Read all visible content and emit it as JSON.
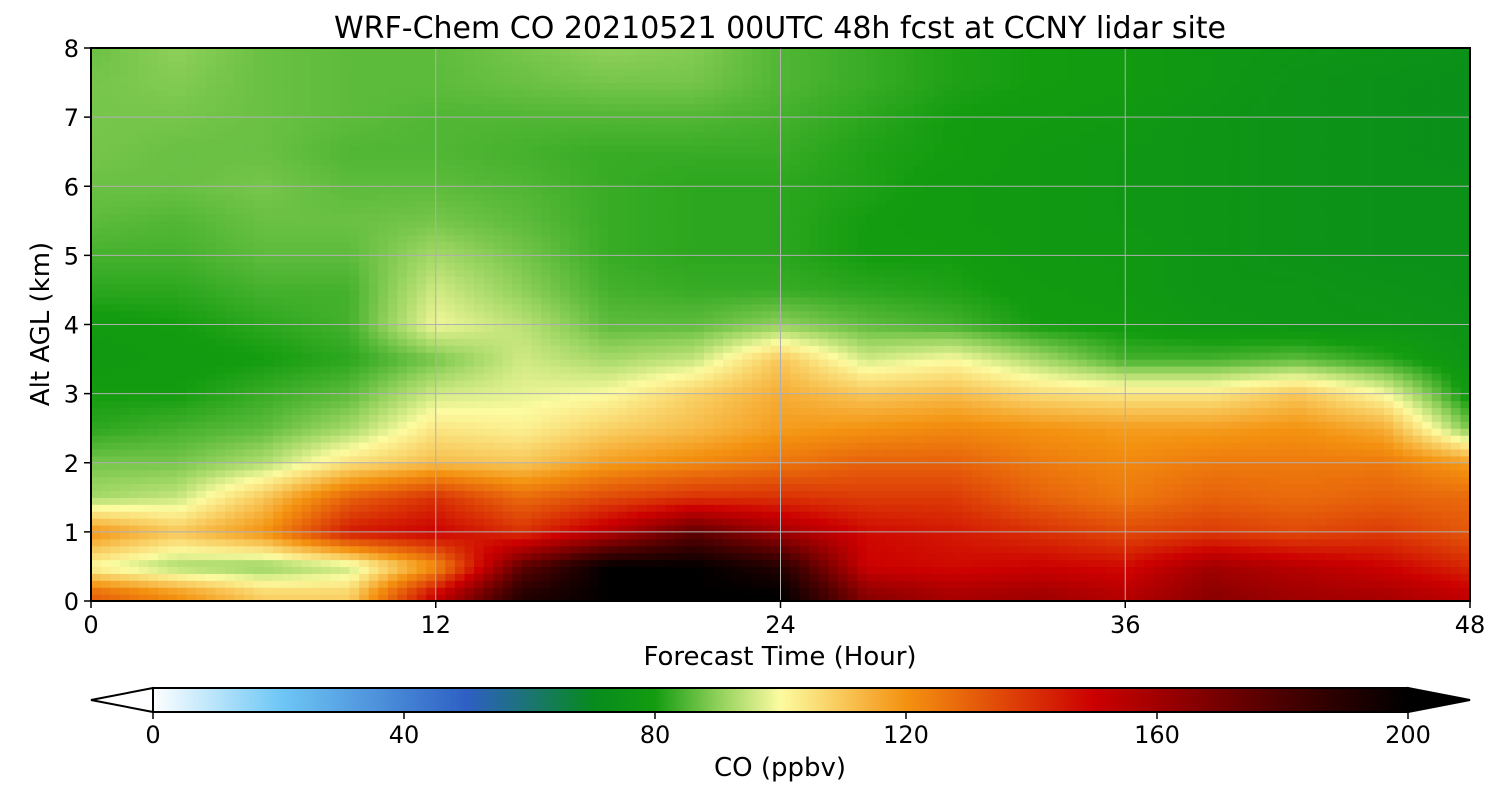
{
  "chart_data": {
    "type": "heatmap",
    "title": "WRF-Chem CO  20210521 00UTC 48h fcst at CCNY lidar site",
    "xlabel": "Forecast Time (Hour)",
    "ylabel": "Alt AGL (km)",
    "xlim": [
      0,
      48
    ],
    "ylim": [
      0,
      8
    ],
    "x_ticks": [
      "0",
      "12",
      "24",
      "36",
      "48"
    ],
    "y_ticks": [
      "0",
      "1",
      "2",
      "3",
      "4",
      "5",
      "6",
      "7",
      "8"
    ],
    "grid": true,
    "colorbar": {
      "label": "CO  (ppbv)",
      "range": [
        0,
        200
      ],
      "ticks": [
        "0",
        "40",
        "80",
        "120",
        "160",
        "200"
      ],
      "extend": "both",
      "palette": [
        {
          "value": 0,
          "color": "#ffffff"
        },
        {
          "value": 20,
          "color": "#6fc8f5"
        },
        {
          "value": 50,
          "color": "#2e5fc4"
        },
        {
          "value": 70,
          "color": "#078a1e"
        },
        {
          "value": 80,
          "color": "#139c0f"
        },
        {
          "value": 90,
          "color": "#8fd05a"
        },
        {
          "value": 100,
          "color": "#fcfba0"
        },
        {
          "value": 120,
          "color": "#f49210"
        },
        {
          "value": 150,
          "color": "#cc0000"
        },
        {
          "value": 180,
          "color": "#4a0000"
        },
        {
          "value": 200,
          "color": "#000000"
        }
      ]
    },
    "times": [
      0,
      3,
      6,
      9,
      12,
      15,
      18,
      21,
      24,
      27,
      30,
      33,
      36,
      39,
      42,
      45,
      48
    ],
    "altitudes": [
      0.1,
      0.5,
      1.0,
      1.5,
      2.0,
      2.5,
      3.0,
      3.5,
      4.0,
      4.5,
      5.0,
      5.5,
      6.0,
      6.5,
      7.0,
      7.5,
      8.0
    ],
    "values": [
      [
        130,
        120,
        108,
        108,
        150,
        190,
        200,
        200,
        200,
        165,
        158,
        160,
        155,
        165,
        160,
        158,
        152
      ],
      [
        100,
        92,
        90,
        95,
        120,
        175,
        200,
        200,
        190,
        150,
        148,
        150,
        148,
        160,
        155,
        150,
        142
      ],
      [
        120,
        110,
        120,
        145,
        150,
        140,
        155,
        175,
        160,
        148,
        145,
        140,
        135,
        138,
        135,
        138,
        132
      ],
      [
        92,
        95,
        110,
        130,
        140,
        128,
        135,
        140,
        140,
        138,
        138,
        130,
        125,
        130,
        128,
        130,
        128
      ],
      [
        88,
        88,
        93,
        105,
        112,
        110,
        118,
        122,
        126,
        130,
        130,
        125,
        122,
        125,
        125,
        125,
        118
      ],
      [
        82,
        84,
        86,
        92,
        104,
        102,
        108,
        112,
        118,
        120,
        122,
        120,
        118,
        118,
        120,
        115,
        88
      ],
      [
        80,
        80,
        83,
        86,
        96,
        98,
        100,
        108,
        115,
        110,
        112,
        106,
        104,
        104,
        110,
        100,
        78
      ],
      [
        78,
        79,
        80,
        82,
        88,
        96,
        92,
        95,
        110,
        96,
        100,
        92,
        84,
        84,
        86,
        82,
        76
      ],
      [
        79,
        80,
        82,
        84,
        99,
        94,
        86,
        86,
        90,
        86,
        84,
        80,
        79,
        77,
        76,
        76,
        75
      ],
      [
        82,
        82,
        84,
        84,
        96,
        90,
        84,
        83,
        83,
        82,
        81,
        79,
        78,
        76,
        76,
        75,
        74
      ],
      [
        84,
        84,
        86,
        86,
        92,
        88,
        83,
        82,
        82,
        80,
        80,
        78,
        78,
        76,
        75,
        74,
        74
      ],
      [
        86,
        85,
        87,
        87,
        88,
        86,
        83,
        82,
        82,
        80,
        79,
        78,
        77,
        76,
        75,
        74,
        74
      ],
      [
        87,
        87,
        88,
        86,
        86,
        85,
        83,
        82,
        82,
        81,
        79,
        78,
        77,
        76,
        75,
        74,
        74
      ],
      [
        88,
        87,
        87,
        85,
        85,
        84,
        83,
        83,
        83,
        81,
        80,
        78,
        77,
        76,
        75,
        74,
        73
      ],
      [
        88,
        88,
        87,
        86,
        85,
        85,
        85,
        85,
        84,
        82,
        80,
        79,
        78,
        76,
        75,
        74,
        73
      ],
      [
        88,
        89,
        87,
        86,
        86,
        87,
        88,
        88,
        85,
        83,
        81,
        80,
        79,
        77,
        75,
        74,
        73
      ],
      [
        87,
        90,
        87,
        86,
        86,
        88,
        90,
        89,
        85,
        83,
        81,
        80,
        79,
        77,
        76,
        75,
        74
      ]
    ]
  }
}
